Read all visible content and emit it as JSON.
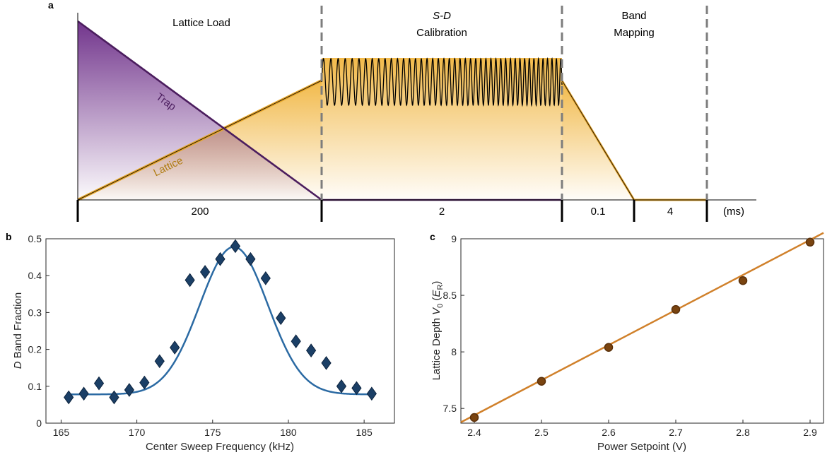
{
  "panel_a": {
    "letter": "a",
    "phases": [
      "Lattice Load",
      "S-D",
      "Calibration",
      "Band",
      "Mapping"
    ],
    "trap_label": "Trap",
    "lattice_label": "Lattice",
    "durations": [
      "200",
      "2",
      "0.1",
      "4"
    ],
    "unit": "(ms)",
    "colors": {
      "trap": "#4b1d5e",
      "lattice": "#e8a82a"
    }
  },
  "chart_data": [
    {
      "panel": "b",
      "type": "scatter",
      "title": "",
      "xlabel": "Center Sweep Frequency (kHz)",
      "ylabel": "Band Fraction",
      "ylabel_prefix": "D",
      "xlim": [
        164,
        187
      ],
      "ylim": [
        0,
        0.5
      ],
      "xticks": [
        "165",
        "170",
        "175",
        "180",
        "185"
      ],
      "yticks": [
        "0",
        "0.1",
        "0.2",
        "0.3",
        "0.4",
        "0.5"
      ],
      "marker_color": "#1b3f66",
      "fit_color": "#2b6aa3",
      "series": [
        {
          "name": "data",
          "x": [
            165.5,
            166.5,
            167.5,
            168.5,
            169.5,
            170.5,
            171.5,
            172.5,
            173.5,
            174.5,
            175.5,
            176.5,
            177.5,
            178.5,
            179.5,
            180.5,
            181.5,
            182.5,
            183.5,
            184.5,
            185.5
          ],
          "y": [
            0.07,
            0.08,
            0.108,
            0.07,
            0.09,
            0.11,
            0.168,
            0.205,
            0.388,
            0.41,
            0.445,
            0.48,
            0.445,
            0.393,
            0.285,
            0.222,
            0.197,
            0.163,
            0.1,
            0.095,
            0.08
          ]
        }
      ],
      "fit": {
        "model": "gaussian",
        "baseline": 0.078,
        "amplitude": 0.4,
        "center": 176.4,
        "sigma": 2.25
      }
    },
    {
      "panel": "c",
      "type": "scatter",
      "title": "",
      "xlabel": "Power Setpoint (V)",
      "ylabel": "Lattice Depth",
      "ylabel_var": "V",
      "ylabel_sub": "0",
      "ylabel_unit_var": "E",
      "ylabel_unit_sub": "R",
      "xlim": [
        2.38,
        2.92
      ],
      "ylim": [
        7.37,
        9.0
      ],
      "xticks": [
        "2.4",
        "2.5",
        "2.6",
        "2.7",
        "2.8",
        "2.9"
      ],
      "yticks": [
        "7.5",
        "8",
        "8.5",
        "9"
      ],
      "marker_color": "#7a4410",
      "fit_color": "#d0802a",
      "series": [
        {
          "name": "data",
          "x": [
            2.4,
            2.5,
            2.6,
            2.7,
            2.8,
            2.9
          ],
          "y": [
            7.42,
            7.74,
            8.04,
            8.375,
            8.63,
            8.97
          ]
        }
      ],
      "fit": {
        "model": "linear",
        "slope": 3.1,
        "intercept": 0.0
      }
    }
  ]
}
